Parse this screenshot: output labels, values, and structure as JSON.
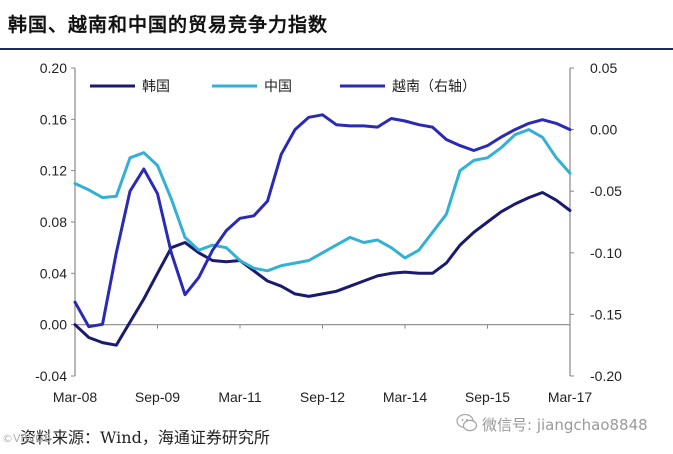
{
  "chart_data": {
    "type": "line",
    "title": "韩国、越南和中国的贸易竞争力指数",
    "x_ticks": [
      "Mar-08",
      "Sep-09",
      "Mar-11",
      "Sep-12",
      "Mar-14",
      "Sep-15",
      "Mar-17"
    ],
    "x_range": [
      "2008-03",
      "2017-03"
    ],
    "left_axis": {
      "ylim": [
        -0.04,
        0.2
      ],
      "ticks": [
        "-0.04",
        "0.00",
        "0.04",
        "0.08",
        "0.12",
        "0.16",
        "0.20"
      ]
    },
    "right_axis": {
      "ylim": [
        -0.2,
        0.05
      ],
      "ticks": [
        "-0.20",
        "-0.15",
        "-0.10",
        "-0.05",
        "0.00",
        "0.05"
      ]
    },
    "legend_placement": "top",
    "grid": false,
    "series": [
      {
        "name": "韩国",
        "axis": "left",
        "color": "#1a1a6e",
        "points": [
          [
            "2008-03",
            0.0
          ],
          [
            "2008-06",
            -0.01
          ],
          [
            "2008-09",
            -0.014
          ],
          [
            "2008-12",
            -0.016
          ],
          [
            "2009-03",
            0.002
          ],
          [
            "2009-06",
            0.02
          ],
          [
            "2009-09",
            0.04
          ],
          [
            "2009-12",
            0.06
          ],
          [
            "2010-03",
            0.064
          ],
          [
            "2010-06",
            0.056
          ],
          [
            "2010-09",
            0.05
          ],
          [
            "2010-12",
            0.049
          ],
          [
            "2011-03",
            0.05
          ],
          [
            "2011-06",
            0.042
          ],
          [
            "2011-09",
            0.034
          ],
          [
            "2011-12",
            0.03
          ],
          [
            "2012-03",
            0.024
          ],
          [
            "2012-06",
            0.022
          ],
          [
            "2012-09",
            0.024
          ],
          [
            "2012-12",
            0.026
          ],
          [
            "2013-03",
            0.03
          ],
          [
            "2013-06",
            0.034
          ],
          [
            "2013-09",
            0.038
          ],
          [
            "2013-12",
            0.04
          ],
          [
            "2014-03",
            0.041
          ],
          [
            "2014-06",
            0.04
          ],
          [
            "2014-09",
            0.04
          ],
          [
            "2014-12",
            0.048
          ],
          [
            "2015-03",
            0.062
          ],
          [
            "2015-06",
            0.072
          ],
          [
            "2015-09",
            0.08
          ],
          [
            "2015-12",
            0.088
          ],
          [
            "2016-03",
            0.094
          ],
          [
            "2016-06",
            0.099
          ],
          [
            "2016-09",
            0.103
          ],
          [
            "2016-12",
            0.097
          ],
          [
            "2017-03",
            0.089
          ]
        ]
      },
      {
        "name": "中国",
        "axis": "left",
        "color": "#33b0d6",
        "points": [
          [
            "2008-03",
            0.11
          ],
          [
            "2008-06",
            0.105
          ],
          [
            "2008-09",
            0.099
          ],
          [
            "2008-12",
            0.1
          ],
          [
            "2009-03",
            0.13
          ],
          [
            "2009-06",
            0.134
          ],
          [
            "2009-09",
            0.124
          ],
          [
            "2009-12",
            0.098
          ],
          [
            "2010-03",
            0.068
          ],
          [
            "2010-06",
            0.058
          ],
          [
            "2010-09",
            0.062
          ],
          [
            "2010-12",
            0.06
          ],
          [
            "2011-03",
            0.05
          ],
          [
            "2011-06",
            0.044
          ],
          [
            "2011-09",
            0.042
          ],
          [
            "2011-12",
            0.046
          ],
          [
            "2012-03",
            0.048
          ],
          [
            "2012-06",
            0.05
          ],
          [
            "2012-09",
            0.056
          ],
          [
            "2012-12",
            0.062
          ],
          [
            "2013-03",
            0.068
          ],
          [
            "2013-06",
            0.064
          ],
          [
            "2013-09",
            0.066
          ],
          [
            "2013-12",
            0.06
          ],
          [
            "2014-03",
            0.052
          ],
          [
            "2014-06",
            0.058
          ],
          [
            "2014-09",
            0.072
          ],
          [
            "2014-12",
            0.086
          ],
          [
            "2015-03",
            0.12
          ],
          [
            "2015-06",
            0.128
          ],
          [
            "2015-09",
            0.13
          ],
          [
            "2015-12",
            0.138
          ],
          [
            "2016-03",
            0.148
          ],
          [
            "2016-06",
            0.152
          ],
          [
            "2016-09",
            0.146
          ],
          [
            "2016-12",
            0.13
          ],
          [
            "2017-03",
            0.118
          ]
        ]
      },
      {
        "name": "越南（右轴）",
        "axis": "right",
        "color": "#2a2ab4",
        "points": [
          [
            "2008-03",
            -0.14
          ],
          [
            "2008-06",
            -0.16
          ],
          [
            "2008-09",
            -0.158
          ],
          [
            "2008-12",
            -0.1
          ],
          [
            "2009-03",
            -0.05
          ],
          [
            "2009-06",
            -0.032
          ],
          [
            "2009-09",
            -0.052
          ],
          [
            "2009-12",
            -0.1
          ],
          [
            "2010-03",
            -0.134
          ],
          [
            "2010-06",
            -0.12
          ],
          [
            "2010-09",
            -0.098
          ],
          [
            "2010-12",
            -0.082
          ],
          [
            "2011-03",
            -0.072
          ],
          [
            "2011-06",
            -0.07
          ],
          [
            "2011-09",
            -0.058
          ],
          [
            "2011-12",
            -0.02
          ],
          [
            "2012-03",
            0.0
          ],
          [
            "2012-06",
            0.01
          ],
          [
            "2012-09",
            0.012
          ],
          [
            "2012-12",
            0.004
          ],
          [
            "2013-03",
            0.003
          ],
          [
            "2013-06",
            0.003
          ],
          [
            "2013-09",
            0.002
          ],
          [
            "2013-12",
            0.009
          ],
          [
            "2014-03",
            0.007
          ],
          [
            "2014-06",
            0.004
          ],
          [
            "2014-09",
            0.002
          ],
          [
            "2014-12",
            -0.008
          ],
          [
            "2015-03",
            -0.013
          ],
          [
            "2015-06",
            -0.017
          ],
          [
            "2015-09",
            -0.013
          ],
          [
            "2015-12",
            -0.006
          ],
          [
            "2016-03",
            0.0
          ],
          [
            "2016-06",
            0.005
          ],
          [
            "2016-09",
            0.008
          ],
          [
            "2016-12",
            0.005
          ],
          [
            "2017-03",
            0.0
          ]
        ]
      }
    ]
  },
  "source": "资料来源：Wind，海通证券研究所",
  "watermark": "微信号: jiangchao8848",
  "corner_mark": "©VBVGB"
}
